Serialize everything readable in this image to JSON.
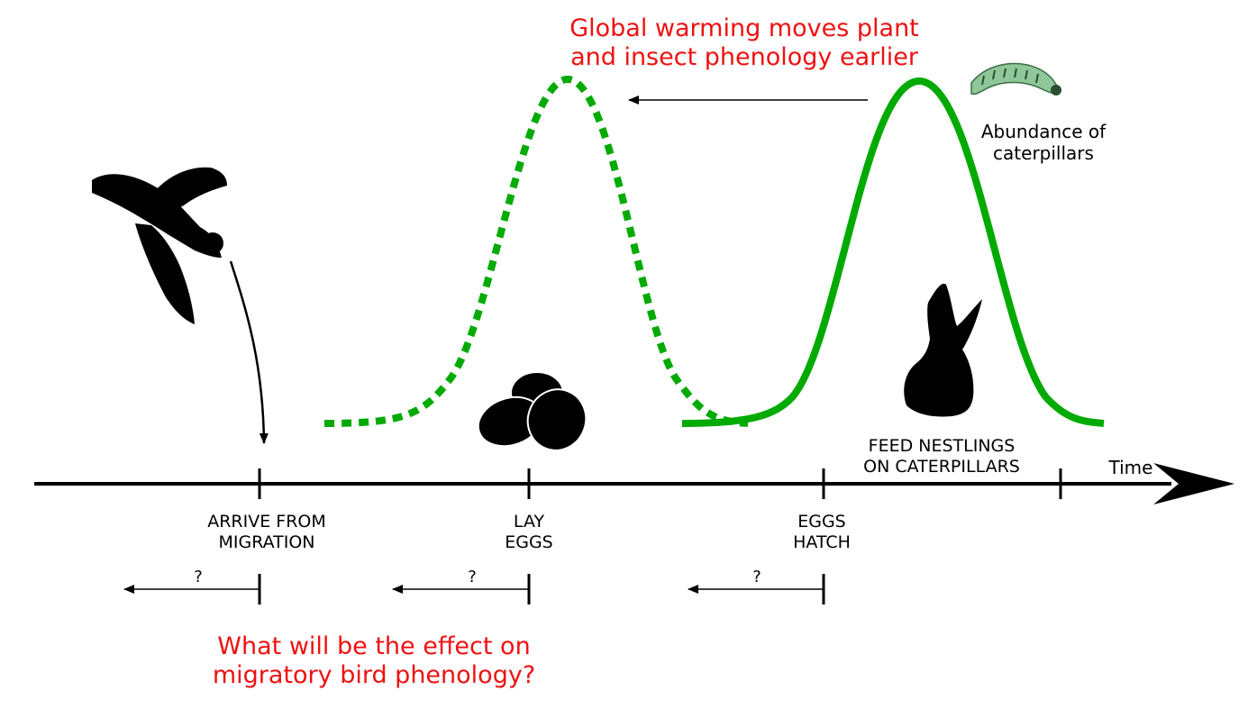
{
  "title": {
    "line1": "Global warming moves plant",
    "line2": "and insect phenology earlier",
    "color": "#ee1111"
  },
  "question": {
    "line1": "What will be the effect on",
    "line2": "migratory bird phenology?",
    "color": "#ee1111"
  },
  "caterpillar_label": {
    "line1": "Abundance of",
    "line2": "caterpillars"
  },
  "axis": {
    "label": "Time"
  },
  "events": [
    {
      "line1": "ARRIVE FROM",
      "line2": "MIGRATION",
      "shift_mark": "?"
    },
    {
      "line1": "LAY",
      "line2": "EGGS",
      "shift_mark": "?"
    },
    {
      "line1": "EGGS",
      "line2": "HATCH",
      "shift_mark": "?"
    }
  ],
  "feed_label": {
    "line1": "FEED NESTLINGS",
    "line2": "ON CATERPILLARS"
  },
  "colors": {
    "curve": "#00aa00",
    "axis": "#000000",
    "text_accent": "#ee1111"
  },
  "icons": [
    "flying-bird-icon",
    "eggs-icon",
    "nestling-icon",
    "caterpillar-icon"
  ]
}
